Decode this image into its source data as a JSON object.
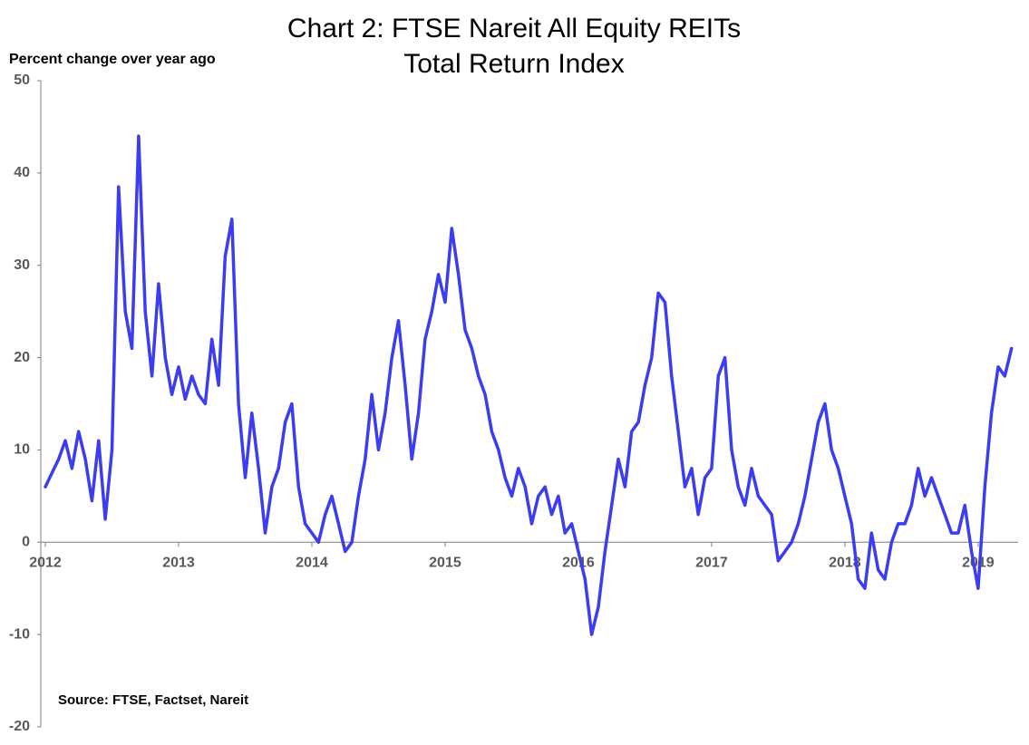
{
  "chart_data": {
    "type": "line",
    "title": [
      "Chart 2: FTSE Nareit All Equity REITs",
      "Total Return Index"
    ],
    "ylabel": "Percent change over year ago",
    "note": "Source: FTSE, Factset, Nareit",
    "color": "#3c3cf0",
    "x": [
      2012.0,
      2012.05,
      2012.1,
      2012.15,
      2012.2,
      2012.25,
      2012.3,
      2012.35,
      2012.4,
      2012.45,
      2012.5,
      2012.55,
      2012.6,
      2012.65,
      2012.7,
      2012.75,
      2012.8,
      2012.85,
      2012.9,
      2012.95,
      2013.0,
      2013.05,
      2013.1,
      2013.15,
      2013.2,
      2013.25,
      2013.3,
      2013.35,
      2013.4,
      2013.45,
      2013.5,
      2013.55,
      2013.6,
      2013.65,
      2013.7,
      2013.75,
      2013.8,
      2013.85,
      2013.9,
      2013.95,
      2014.0,
      2014.05,
      2014.1,
      2014.15,
      2014.2,
      2014.25,
      2014.3,
      2014.35,
      2014.4,
      2014.45,
      2014.5,
      2014.55,
      2014.6,
      2014.65,
      2014.7,
      2014.75,
      2014.8,
      2014.85,
      2014.9,
      2014.95,
      2015.0,
      2015.05,
      2015.1,
      2015.15,
      2015.2,
      2015.25,
      2015.3,
      2015.35,
      2015.4,
      2015.45,
      2015.5,
      2015.55,
      2015.6,
      2015.65,
      2015.7,
      2015.75,
      2015.8,
      2015.85,
      2015.9,
      2015.95,
      2016.0,
      2016.05,
      2016.1,
      2016.15,
      2016.2,
      2016.25,
      2016.3,
      2016.35,
      2016.4,
      2016.45,
      2016.5,
      2016.55,
      2016.6,
      2016.65,
      2016.7,
      2016.75,
      2016.8,
      2016.85,
      2016.9,
      2016.95,
      2017.0,
      2017.05,
      2017.1,
      2017.15,
      2017.2,
      2017.25,
      2017.3,
      2017.35,
      2017.4,
      2017.45,
      2017.5,
      2017.55,
      2017.6,
      2017.65,
      2017.7,
      2017.75,
      2017.8,
      2017.85,
      2017.9,
      2017.95,
      2018.0,
      2018.05,
      2018.1,
      2018.15,
      2018.2,
      2018.25,
      2018.3,
      2018.35,
      2018.4,
      2018.45,
      2018.5,
      2018.55,
      2018.6,
      2018.65,
      2018.7,
      2018.75,
      2018.8,
      2018.85,
      2018.9,
      2018.95,
      2019.0,
      2019.05,
      2019.1,
      2019.15,
      2019.2,
      2019.25
    ],
    "values": [
      6,
      7.5,
      9,
      11,
      8,
      12,
      9,
      4.5,
      11,
      2.5,
      10,
      38.5,
      25,
      21,
      44,
      25,
      18,
      28,
      20,
      16,
      19,
      15.5,
      18,
      16,
      15,
      22,
      17,
      31,
      35,
      15,
      7,
      14,
      8,
      1,
      6,
      8,
      13,
      15,
      6,
      2,
      1,
      0,
      3,
      5,
      2,
      -1,
      0,
      5,
      9,
      16,
      10,
      14,
      20,
      24,
      17,
      9,
      14,
      22,
      25,
      29,
      26,
      34,
      29,
      23,
      21,
      18,
      16,
      12,
      10,
      7,
      5,
      8,
      6,
      2,
      5,
      6,
      3,
      5,
      1,
      2,
      -1,
      -4,
      -10,
      -7,
      -1,
      4,
      9,
      6,
      12,
      13,
      17,
      20,
      27,
      26,
      18,
      12,
      6,
      8,
      3,
      7,
      8,
      18,
      20,
      10,
      6,
      4,
      8,
      5,
      4,
      3,
      -2,
      -1,
      0,
      2,
      5,
      9,
      13,
      15,
      10,
      8,
      5,
      2,
      -4,
      -5,
      1,
      -3,
      -4,
      0,
      2,
      2,
      4,
      8,
      5,
      7,
      5,
      3,
      1,
      1,
      4,
      -1,
      -5,
      6,
      14,
      19,
      18,
      21
    ],
    "xlim": [
      2012,
      2019.3
    ],
    "xticks": [
      2012,
      2013,
      2014,
      2015,
      2016,
      2017,
      2018,
      2019
    ],
    "ylim": [
      -20,
      50
    ],
    "yticks": [
      -20,
      -10,
      0,
      10,
      20,
      30,
      40,
      50
    ]
  }
}
